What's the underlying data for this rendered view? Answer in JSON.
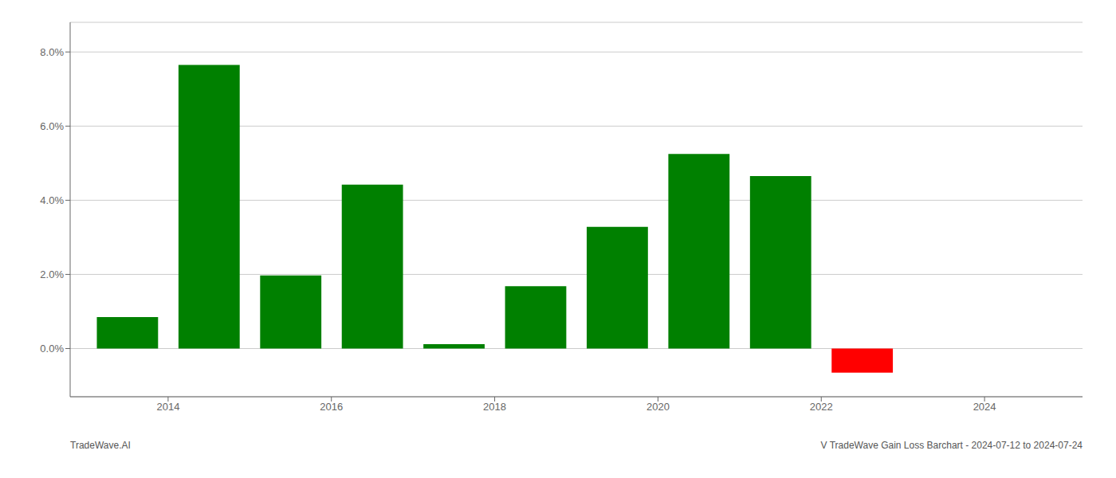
{
  "chart_data": {
    "type": "bar",
    "x": [
      2013.5,
      2014.5,
      2015.5,
      2016.5,
      2017.5,
      2018.5,
      2019.5,
      2020.5,
      2021.5,
      2022.5
    ],
    "values": [
      0.0085,
      0.0765,
      0.0197,
      0.0442,
      0.0012,
      0.0168,
      0.0328,
      0.0525,
      0.0465,
      -0.0065
    ],
    "colors": [
      "#008000",
      "#008000",
      "#008000",
      "#008000",
      "#008000",
      "#008000",
      "#008000",
      "#008000",
      "#008000",
      "#ff0000"
    ],
    "xlim": [
      2012.8,
      2025.2
    ],
    "xticks": [
      2014,
      2016,
      2018,
      2020,
      2022,
      2024
    ],
    "ylim": [
      -0.013,
      0.088
    ],
    "yticks": [
      {
        "value": 0.0,
        "label": "0.0%"
      },
      {
        "value": 0.02,
        "label": "2.0%"
      },
      {
        "value": 0.04,
        "label": "4.0%"
      },
      {
        "value": 0.06,
        "label": "6.0%"
      },
      {
        "value": 0.08,
        "label": "8.0%"
      }
    ],
    "grid": true,
    "annotations": [
      "TradeWave.AI",
      "V TradeWave Gain Loss Barchart - 2024-07-12 to 2024-07-24"
    ]
  }
}
